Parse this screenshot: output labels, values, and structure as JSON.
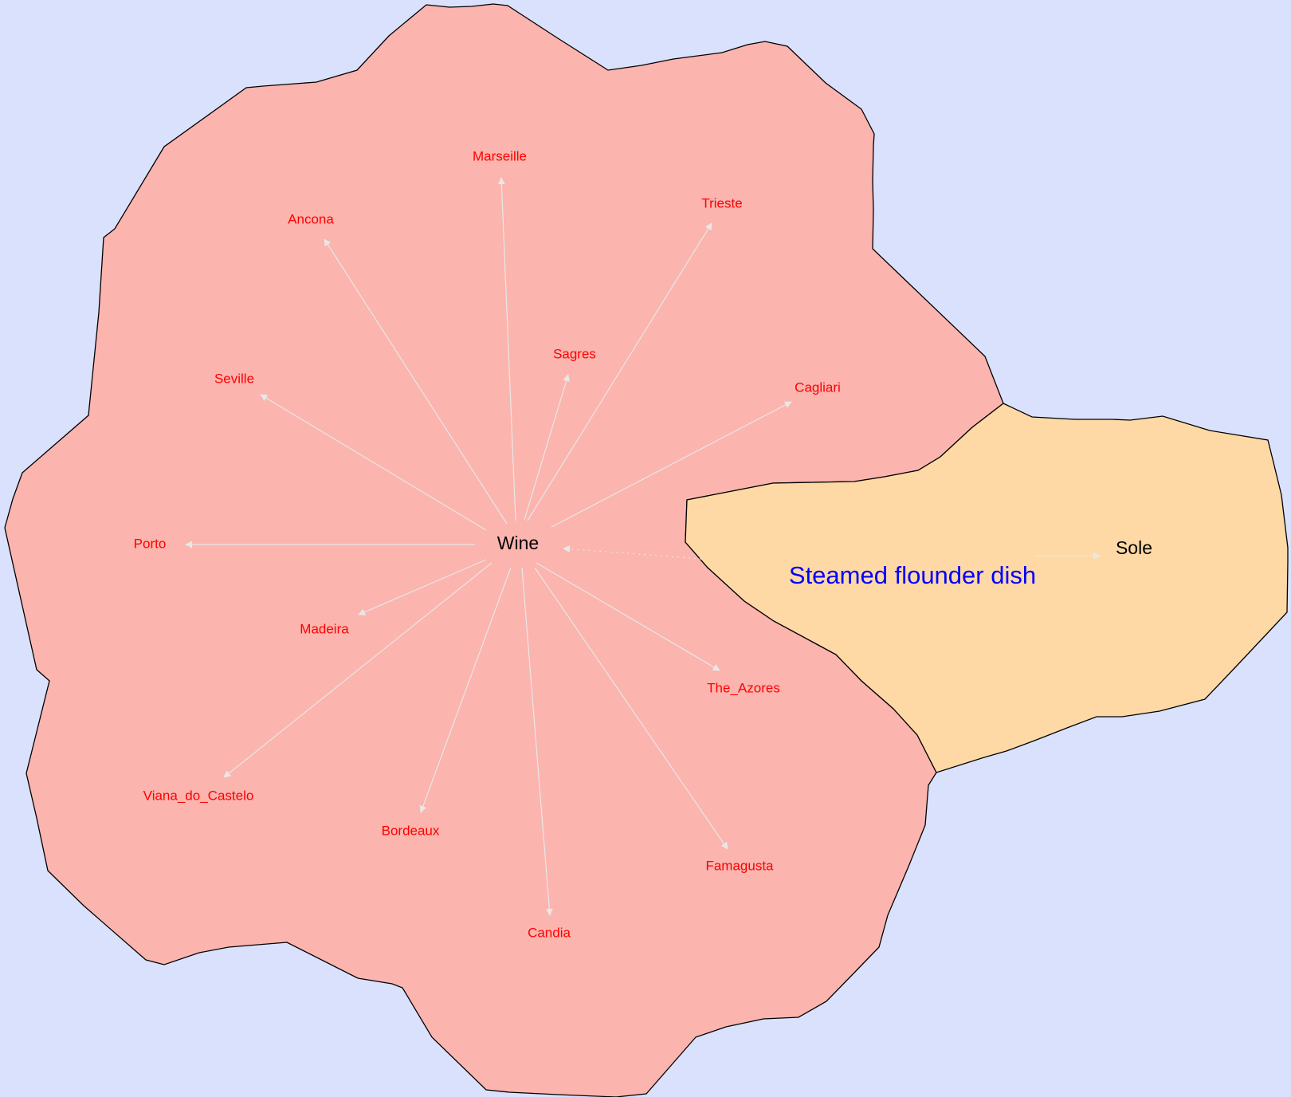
{
  "colors": {
    "background": "#d9e1fd",
    "wine_region": "#fbb4ae",
    "dish_region": "#fed9a6",
    "region_border": "#000000",
    "edge": "#e8e8e8",
    "place_text": "#ff0000",
    "hub_text": "#000000",
    "title_text": "#0000ff"
  },
  "graph": {
    "regions": [
      {
        "id": "wine",
        "fill_color": "wine_region"
      },
      {
        "id": "dish",
        "fill_color": "dish_region"
      }
    ],
    "title": "Steamed flounder dish",
    "hubs": {
      "wine": "Wine",
      "sole": "Sole"
    },
    "places": [
      "Marseille",
      "Trieste",
      "Ancona",
      "Sagres",
      "Cagliari",
      "Seville",
      "Porto",
      "Madeira",
      "The_Azores",
      "Viana_do_Castelo",
      "Bordeaux",
      "Famagusta",
      "Candia"
    ],
    "edges": [
      {
        "from": "Wine",
        "to": "Marseille",
        "style": "solid"
      },
      {
        "from": "Wine",
        "to": "Trieste",
        "style": "solid"
      },
      {
        "from": "Wine",
        "to": "Ancona",
        "style": "solid"
      },
      {
        "from": "Wine",
        "to": "Sagres",
        "style": "solid"
      },
      {
        "from": "Wine",
        "to": "Cagliari",
        "style": "solid"
      },
      {
        "from": "Wine",
        "to": "Seville",
        "style": "solid"
      },
      {
        "from": "Wine",
        "to": "Porto",
        "style": "solid"
      },
      {
        "from": "Wine",
        "to": "Madeira",
        "style": "solid"
      },
      {
        "from": "Wine",
        "to": "The_Azores",
        "style": "solid"
      },
      {
        "from": "Wine",
        "to": "Viana_do_Castelo",
        "style": "solid"
      },
      {
        "from": "Wine",
        "to": "Bordeaux",
        "style": "solid"
      },
      {
        "from": "Wine",
        "to": "Famagusta",
        "style": "solid"
      },
      {
        "from": "Wine",
        "to": "Candia",
        "style": "solid"
      },
      {
        "from": "Steamed flounder dish",
        "to": "Wine",
        "style": "dotted"
      },
      {
        "from": "Steamed flounder dish",
        "to": "Sole",
        "style": "solid"
      }
    ]
  }
}
